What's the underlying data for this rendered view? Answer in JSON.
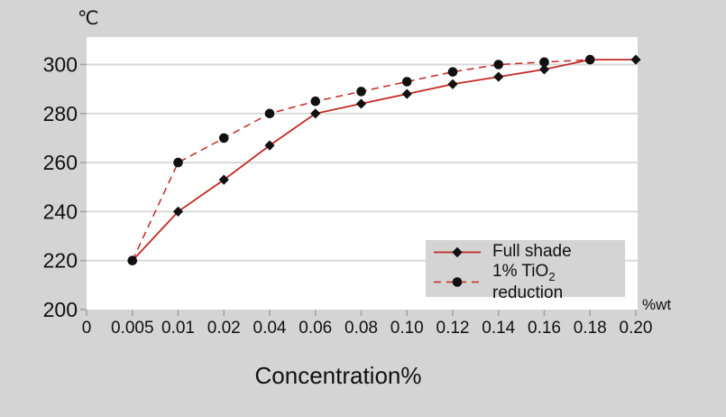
{
  "colors": {
    "background": "#d4d4d4",
    "plot_bg": "#ffffff",
    "grid": "#d9d9d9",
    "tick": "#a0a0a0",
    "text": "#111111",
    "legend_bg": "#d4d4d4",
    "series_red": "#c32822",
    "marker_black": "#111111"
  },
  "chart_data": {
    "type": "line",
    "title": "",
    "grid": true,
    "legend_position": "inside-bottom-right",
    "x_axis": {
      "title": "Concentration%",
      "unit": "%wt",
      "categories": [
        "0",
        "0.005",
        "0.01",
        "0.02",
        "0.04",
        "0.06",
        "0.08",
        "0.10",
        "0.12",
        "0.14",
        "0.16",
        "0.18",
        "0.20"
      ]
    },
    "y_axis": {
      "unit": "℃",
      "ticks": [
        200,
        220,
        240,
        260,
        280,
        300
      ],
      "range": [
        200,
        311
      ]
    },
    "series": [
      {
        "name": "Full shade",
        "line": "solid",
        "marker": "diamond",
        "color": "#c32822",
        "marker_color": "#111111",
        "points": [
          [
            "0.005",
            220
          ],
          [
            "0.01",
            240
          ],
          [
            "0.02",
            253
          ],
          [
            "0.04",
            267
          ],
          [
            "0.06",
            280
          ],
          [
            "0.08",
            284
          ],
          [
            "0.10",
            288
          ],
          [
            "0.12",
            292
          ],
          [
            "0.14",
            295
          ],
          [
            "0.16",
            298
          ],
          [
            "0.18",
            302
          ],
          [
            "0.20",
            302
          ]
        ]
      },
      {
        "name": "1% TiO2 reduction",
        "name_parts": {
          "pre": "1% TiO",
          "sub": "2",
          "post": " reduction"
        },
        "line": "dashed",
        "marker": "circle",
        "color": "#c32822",
        "marker_color": "#111111",
        "points": [
          [
            "0.005",
            220
          ],
          [
            "0.01",
            260
          ],
          [
            "0.02",
            270
          ],
          [
            "0.04",
            280
          ],
          [
            "0.06",
            285
          ],
          [
            "0.08",
            289
          ],
          [
            "0.10",
            293
          ],
          [
            "0.12",
            297
          ],
          [
            "0.14",
            300
          ],
          [
            "0.16",
            301
          ],
          [
            "0.18",
            302
          ]
        ]
      }
    ]
  }
}
